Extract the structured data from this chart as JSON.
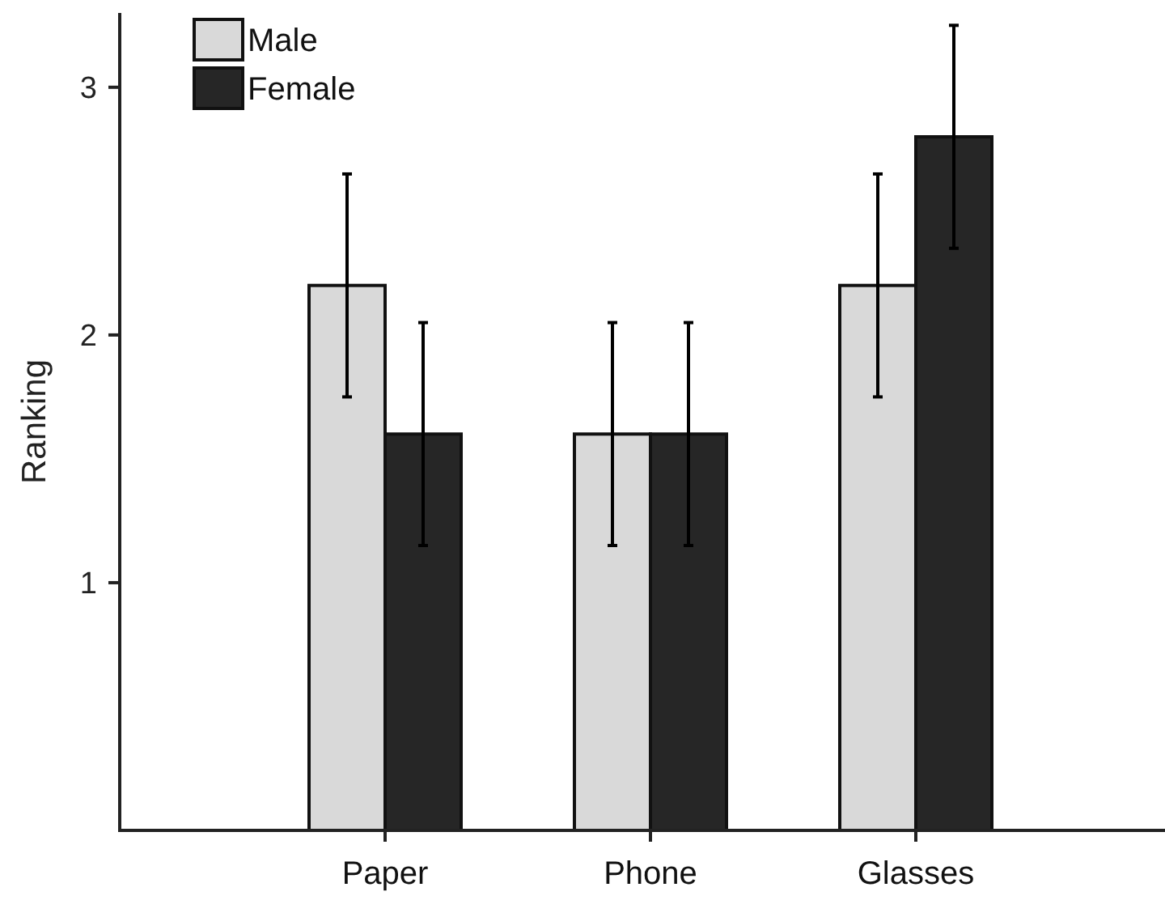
{
  "chart_data": {
    "type": "bar",
    "ylabel": "Ranking",
    "categories": [
      "Paper",
      "Phone",
      "Glasses"
    ],
    "series": [
      {
        "name": "Male",
        "color": "#d9d9d9",
        "values": [
          2.2,
          1.6,
          2.2
        ],
        "errors": [
          0.45,
          0.45,
          0.45
        ]
      },
      {
        "name": "Female",
        "color": "#262626",
        "values": [
          1.6,
          1.6,
          2.8
        ],
        "errors": [
          0.45,
          0.45,
          0.45
        ]
      }
    ],
    "ylim": [
      0,
      3.3
    ],
    "yticks": [
      1,
      2,
      3
    ],
    "grid": false,
    "legend": "top left"
  }
}
